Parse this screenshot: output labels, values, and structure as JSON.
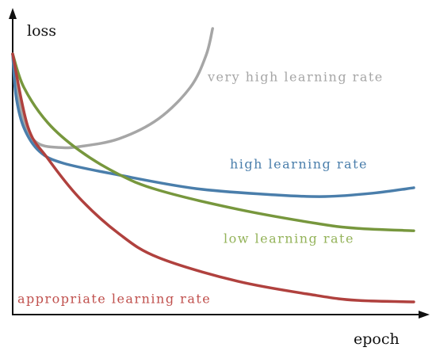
{
  "chart_data": {
    "type": "line",
    "xlabel": "epoch",
    "ylabel": "loss",
    "xlim": [
      0,
      100
    ],
    "ylim": [
      0,
      100
    ],
    "series": [
      {
        "name": "very high learning rate",
        "color": "#a6a6a6",
        "x": [
          0,
          1.7,
          3.7,
          6.5,
          11.3,
          16.2,
          25.8,
          35.4,
          43.1,
          46.9,
          48.5
        ],
        "values": [
          86.1,
          69.9,
          60.7,
          56.3,
          55.2,
          55.5,
          58.1,
          64.7,
          75.1,
          85.6,
          94.5
        ]
      },
      {
        "name": "high learning rate",
        "color": "#4a7eab",
        "x": [
          0,
          0.8,
          2.7,
          6.5,
          12.3,
          25.8,
          44.6,
          64.2,
          75.8,
          87.3,
          97.3
        ],
        "values": [
          86.1,
          72.3,
          61.8,
          53.9,
          50.0,
          46.1,
          41.6,
          39.5,
          39.0,
          40.1,
          41.9
        ]
      },
      {
        "name": "low learning rate",
        "color": "#77973d",
        "x": [
          0,
          2.7,
          8.5,
          16.2,
          25.8,
          35.4,
          54.6,
          73.8,
          83.5,
          97.3
        ],
        "values": [
          86.1,
          75.1,
          63.4,
          54.2,
          46.3,
          41.1,
          34.8,
          30.1,
          28.5,
          27.7
        ]
      },
      {
        "name": "appropriate learning rate",
        "color": "#b0413e",
        "x": [
          0,
          3.7,
          8.5,
          16.2,
          25.8,
          35.4,
          54.6,
          73.8,
          83.5,
          97.3
        ],
        "values": [
          86.1,
          62.0,
          51.6,
          38.5,
          26.7,
          18.8,
          11.0,
          6.3,
          4.7,
          4.2
        ]
      }
    ]
  }
}
